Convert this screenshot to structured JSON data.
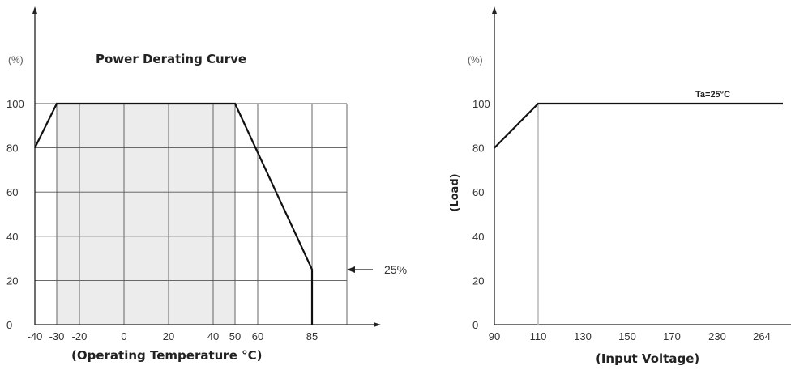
{
  "chart_data": [
    {
      "type": "line",
      "title": "Power Derating Curve",
      "ylabel": "(%)",
      "xlabel": "(Operating Temperature °C)",
      "x_ticks": [
        "-40",
        "-30",
        "-20",
        "0",
        "20",
        "40",
        "50",
        "60",
        "85"
      ],
      "y_ticks": [
        0,
        20,
        40,
        60,
        80,
        100
      ],
      "ylim": [
        0,
        100
      ],
      "grid": true,
      "shaded_region": "-30 to 50",
      "series": [
        {
          "x": [
            -40,
            -30,
            50,
            85,
            85
          ],
          "y": [
            80,
            100,
            100,
            25,
            0
          ]
        }
      ],
      "annotation": {
        "text": "25%",
        "y": 25
      }
    },
    {
      "type": "line",
      "title": "",
      "unit_label": "(%)",
      "ylabel": "(Load)",
      "xlabel": "(Input Voltage)",
      "x_ticks": [
        "90",
        "110",
        "130",
        "150",
        "170",
        "230",
        "264"
      ],
      "y_ticks": [
        0,
        20,
        40,
        60,
        80,
        100
      ],
      "ylim": [
        0,
        100
      ],
      "grid": false,
      "series": [
        {
          "label": "Ta=25°C",
          "x": [
            "90",
            "110",
            "264"
          ],
          "y": [
            80,
            100,
            100
          ]
        }
      ],
      "marker_line_x": "110"
    }
  ]
}
